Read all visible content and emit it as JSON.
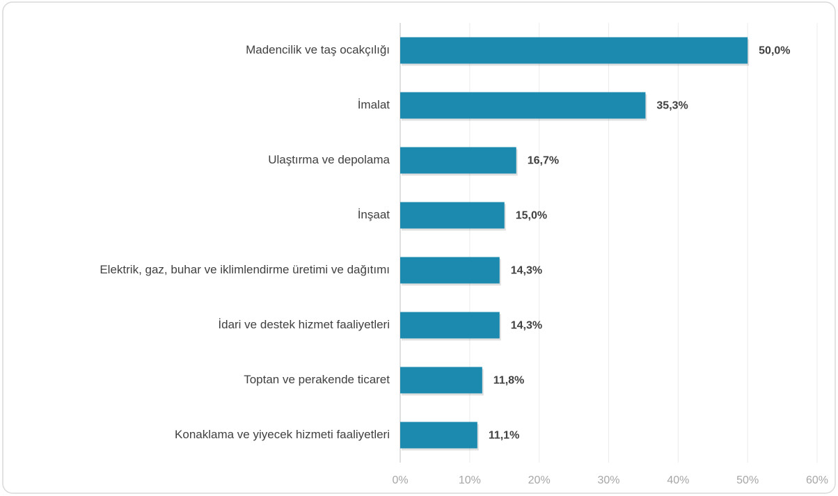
{
  "chart_data": {
    "type": "bar",
    "orientation": "horizontal",
    "categories": [
      "Madencilik ve taş ocakçılığı",
      "İmalat",
      "Ulaştırma ve depolama",
      "İnşaat",
      "Elektrik, gaz, buhar ve iklimlendirme üretimi ve dağıtımı",
      "İdari ve destek hizmet faaliyetleri",
      "Toptan ve perakende ticaret",
      "Konaklama ve yiyecek hizmeti faaliyetleri"
    ],
    "values": [
      50.0,
      35.3,
      16.7,
      15.0,
      14.3,
      14.3,
      11.8,
      11.1
    ],
    "value_labels": [
      "50,0%",
      "35,3%",
      "16,7%",
      "15,0%",
      "14,3%",
      "14,3%",
      "11,8%",
      "11,1%"
    ],
    "color": "#1b8aae",
    "xlim": [
      0,
      60
    ],
    "xticks": [
      {
        "value": 0,
        "label": "0%"
      },
      {
        "value": 10,
        "label": "10%"
      },
      {
        "value": 20,
        "label": "20%"
      },
      {
        "value": 30,
        "label": "30%"
      },
      {
        "value": 40,
        "label": "40%"
      },
      {
        "value": 50,
        "label": "50%"
      },
      {
        "value": 60,
        "label": "60%"
      }
    ],
    "grid": true
  }
}
